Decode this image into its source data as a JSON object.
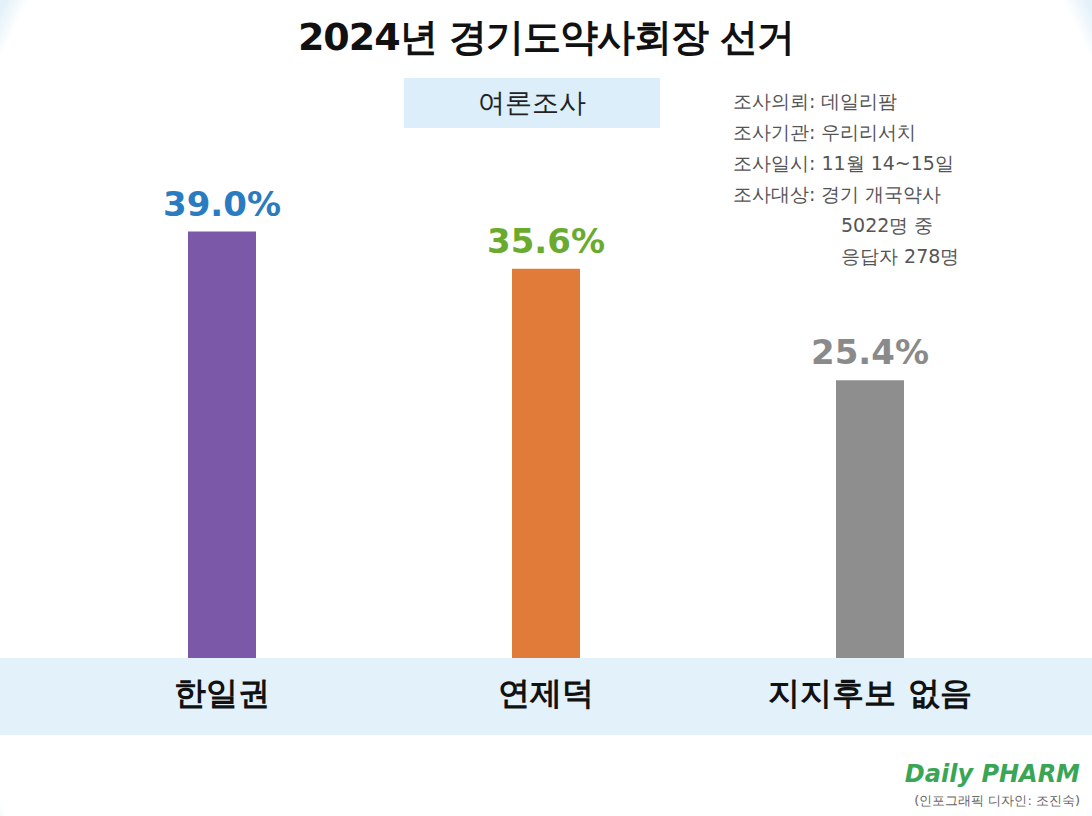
{
  "chart_data": {
    "type": "bar",
    "title": "2024년 경기도약사회장 선거",
    "subtitle": "여론조사",
    "categories": [
      "한일권",
      "연제덕",
      "지지후보 없음"
    ],
    "values": [
      39.0,
      35.6,
      25.4
    ],
    "value_labels": [
      "39.0%",
      "35.6%",
      "25.4%"
    ],
    "colors": [
      "#7b59a8",
      "#e07b39",
      "#8e8e8e"
    ],
    "ylim": [
      0,
      45
    ],
    "grid": false,
    "data_labels": true,
    "tick_labels": "x",
    "annotations": [
      "조사의뢰: 데일리팜",
      "조사기관: 우리리서치",
      "조사일시: 11월 14~15일",
      "조사대상: 경기 개국약사",
      "5022명 중",
      "응답자 278명"
    ],
    "source": "Daily PHARM",
    "credit": "(인포그래픽 디자인: 조진숙)"
  }
}
